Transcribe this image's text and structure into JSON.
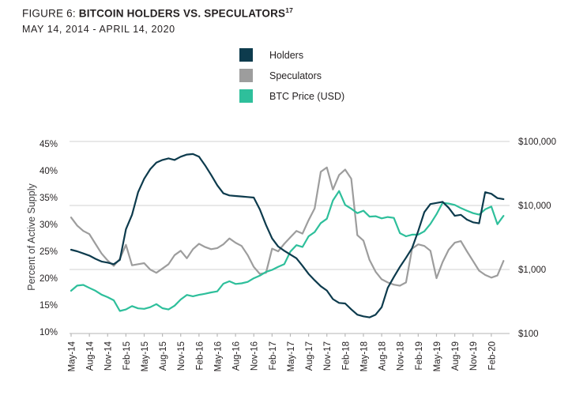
{
  "figure": {
    "label": "FIGURE 6:",
    "title": "BITCOIN HOLDERS VS. SPECULATORS",
    "footnote_marker": "17",
    "date_range": "MAY 14, 2014 -  APRIL 14, 2020"
  },
  "legend": [
    {
      "label": "Holders",
      "color": "#0d3b4d"
    },
    {
      "label": "Speculators",
      "color": "#9d9d9d"
    },
    {
      "label": "BTC Price (USD)",
      "color": "#2ebf9b"
    }
  ],
  "chart_data": {
    "type": "line",
    "title": "Bitcoin Holders vs. Speculators",
    "date_range": "May 14, 2014 - April 14, 2020",
    "x_unit": "month",
    "x_start_label": "May-14",
    "x_end_label": "Apr-20",
    "x_tick_labels": [
      "May-14",
      "Aug-14",
      "Nov-14",
      "Feb-15",
      "May-15",
      "Aug-15",
      "Nov-15",
      "Feb-16",
      "May-16",
      "Aug-16",
      "Nov-16",
      "Feb-17",
      "May-17",
      "Aug-17",
      "Nov-17",
      "Feb-18",
      "May-18",
      "Aug-18",
      "Nov-18",
      "Feb-19",
      "May-19",
      "Aug-19",
      "Nov-19",
      "Feb-20"
    ],
    "grid": "horizontal",
    "legend_position": "top-center",
    "left_axis": {
      "label": "Percent of Active Supply",
      "unit": "percent",
      "range": [
        10,
        45
      ],
      "tick_values": [
        45,
        40,
        35,
        30,
        25,
        20,
        15,
        10
      ],
      "tick_labels": [
        "45%",
        "40%",
        "35%",
        "30%",
        "25%",
        "20%",
        "15%",
        "10%"
      ]
    },
    "right_axis": {
      "label": "BTC Price (USD)",
      "scale": "log",
      "range": [
        100,
        100000
      ],
      "tick_values": [
        100000,
        10000,
        1000,
        100
      ],
      "tick_labels": [
        "$100,000",
        "$10,000",
        "$1,000",
        "$100"
      ]
    },
    "series": [
      {
        "name": "Holders",
        "axis": "left",
        "color": "#0d3b4d",
        "unit": "%",
        "values": [
          25.3,
          25.0,
          24.6,
          24.2,
          23.6,
          23.1,
          22.9,
          22.6,
          23.4,
          29.1,
          31.8,
          36.0,
          38.5,
          40.3,
          41.5,
          42.0,
          42.3,
          42.0,
          42.6,
          43.0,
          43.1,
          42.6,
          41.0,
          39.2,
          37.3,
          35.8,
          35.4,
          35.3,
          35.2,
          35.1,
          35.0,
          32.8,
          29.9,
          27.4,
          25.9,
          25.1,
          24.4,
          23.7,
          22.3,
          20.8,
          19.6,
          18.5,
          17.7,
          16.1,
          15.4,
          15.3,
          14.2,
          13.2,
          12.9,
          12.7,
          13.2,
          14.6,
          18.2,
          20.2,
          22.1,
          23.8,
          25.6,
          28.8,
          32.3,
          33.8,
          34.0,
          34.2,
          33.1,
          31.6,
          31.8,
          30.9,
          30.4,
          30.2,
          36.0,
          35.7,
          34.9,
          34.7
        ]
      },
      {
        "name": "Speculators",
        "axis": "left",
        "color": "#9d9d9d",
        "unit": "%",
        "values": [
          31.3,
          29.8,
          28.8,
          28.2,
          26.4,
          24.6,
          23.3,
          22.3,
          23.6,
          26.2,
          22.4,
          22.6,
          22.8,
          21.6,
          21.0,
          21.8,
          22.6,
          24.3,
          25.1,
          23.7,
          25.4,
          26.4,
          25.8,
          25.4,
          25.6,
          26.3,
          27.4,
          26.6,
          26.0,
          24.3,
          22.1,
          20.8,
          21.0,
          25.5,
          25.0,
          26.4,
          27.6,
          28.8,
          28.3,
          30.8,
          33.0,
          39.8,
          40.6,
          36.5,
          39.2,
          40.2,
          38.5,
          28.0,
          27.0,
          23.4,
          21.2,
          19.8,
          19.2,
          18.8,
          18.6,
          19.2,
          25.5,
          26.3,
          26.0,
          25.1,
          20.0,
          23.0,
          25.3,
          26.6,
          26.9,
          25.0,
          23.2,
          21.4,
          20.6,
          20.1,
          20.5,
          23.2
        ]
      },
      {
        "name": "BTC Price (USD)",
        "axis": "right",
        "color": "#2ebf9b",
        "unit": "USD",
        "values": [
          465,
          560,
          575,
          515,
          465,
          405,
          370,
          330,
          225,
          237,
          268,
          247,
          243,
          258,
          288,
          248,
          237,
          272,
          340,
          400,
          382,
          402,
          418,
          438,
          455,
          600,
          655,
          595,
          608,
          640,
          730,
          800,
          915,
          985,
          1100,
          1210,
          1900,
          2400,
          2250,
          3300,
          3850,
          5300,
          6200,
          12000,
          16800,
          10200,
          8900,
          7600,
          8300,
          6700,
          6800,
          6300,
          6600,
          6400,
          3700,
          3300,
          3500,
          3500,
          3950,
          5150,
          7300,
          11000,
          10700,
          10200,
          9100,
          8300,
          7600,
          7200,
          8700,
          9600,
          5100,
          6900
        ]
      }
    ]
  }
}
